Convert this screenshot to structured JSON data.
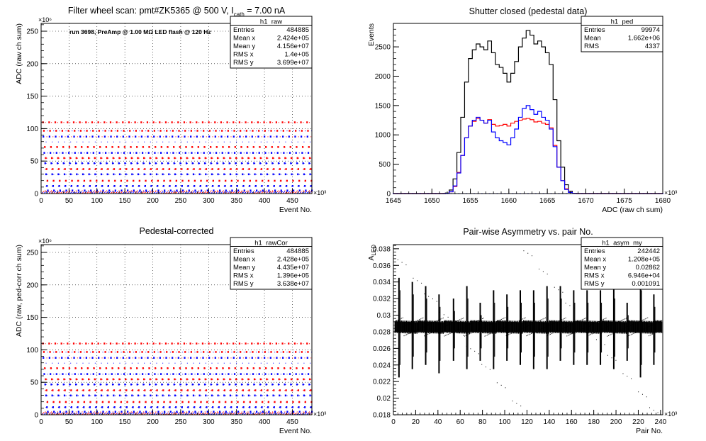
{
  "chart_data": [
    {
      "id": "raw",
      "type": "scatter",
      "title": "Filter wheel scan: pmt#ZK5365 @  500 V, I",
      "title_sub": "cath",
      "title_tail": " = 7.00 nA",
      "annotation": "run 3698, PreAmp @ 1.00 MΩ LED flash @  120 Hz",
      "xlabel": "Event No.",
      "ylabel": "ADC (raw ch sum)",
      "xlim": [
        0,
        485
      ],
      "ylim": [
        0,
        262
      ],
      "x_ticks": [
        0,
        50,
        100,
        150,
        200,
        250,
        300,
        350,
        400,
        450
      ],
      "y_ticks": [
        0,
        50,
        100,
        150,
        200,
        250
      ],
      "x_exp": "×10³",
      "y_exp": "×10⁶",
      "grid": true,
      "stats_box": {
        "name": "h1_raw",
        "rows": [
          [
            "Entries",
            "484885"
          ],
          [
            "Mean x",
            "2.424e+05"
          ],
          [
            "Mean y",
            "4.156e+07"
          ],
          [
            "RMS x",
            "1.4e+05"
          ],
          [
            "RMS y",
            "3.699e+07"
          ]
        ]
      },
      "levels": [
        5,
        12,
        20,
        30,
        38,
        47,
        55,
        63,
        72,
        80,
        88,
        97,
        110
      ],
      "step_width": 11,
      "series": [
        {
          "color": "#ff0000",
          "values": [
            110,
            97,
            72,
            55,
            38,
            20
          ]
        },
        {
          "color": "#0000ff",
          "values": [
            88,
            63,
            47,
            30,
            12,
            5
          ]
        }
      ]
    },
    {
      "id": "ped",
      "type": "line",
      "title": "Shutter closed (pedestal data)",
      "xlabel": "ADC (raw ch sum)",
      "ylabel": "Events",
      "xlim": [
        1645,
        1680
      ],
      "ylim": [
        0,
        2900
      ],
      "x_ticks": [
        1645,
        1650,
        1655,
        1660,
        1665,
        1670,
        1675,
        1680
      ],
      "y_ticks": [
        0,
        500,
        1000,
        1500,
        2000,
        2500
      ],
      "x_exp": "×10³",
      "grid": false,
      "stats_box": {
        "name": "h1_ped",
        "rows": [
          [
            "Entries",
            "99974"
          ],
          [
            "Mean",
            "1.662e+06"
          ],
          [
            "RMS",
            "4337"
          ]
        ]
      },
      "x": [
        1652,
        1652.5,
        1653,
        1653.5,
        1654,
        1654.5,
        1655,
        1655.5,
        1656,
        1656.5,
        1657,
        1657.5,
        1658,
        1658.5,
        1659,
        1659.5,
        1660,
        1660.5,
        1661,
        1661.5,
        1662,
        1662.5,
        1663,
        1663.5,
        1664,
        1664.5,
        1665,
        1665.5,
        1666,
        1666.5,
        1667,
        1667.5,
        1668,
        1668.5,
        1669,
        1669.5,
        1670,
        1670.5,
        1671
      ],
      "series": [
        {
          "color": "#000000",
          "values": [
            10,
            60,
            250,
            700,
            1300,
            1900,
            2300,
            2450,
            2550,
            2500,
            2450,
            2600,
            2400,
            2200,
            2150,
            2050,
            1900,
            2050,
            2250,
            2500,
            2650,
            2780,
            2700,
            2550,
            2600,
            2500,
            2400,
            2200,
            1600,
            900,
            450,
            150,
            40,
            5,
            0,
            0,
            0,
            0,
            0
          ]
        },
        {
          "color": "#ff0000",
          "values": [
            5,
            30,
            120,
            360,
            650,
            950,
            1150,
            1230,
            1280,
            1250,
            1200,
            1260,
            1180,
            1150,
            1160,
            1180,
            1150,
            1200,
            1230,
            1250,
            1270,
            1280,
            1260,
            1220,
            1230,
            1200,
            1180,
            1120,
            820,
            450,
            220,
            80,
            20,
            3,
            0,
            0,
            0,
            0,
            0
          ]
        },
        {
          "color": "#0000ff",
          "values": [
            5,
            30,
            130,
            350,
            650,
            950,
            1150,
            1250,
            1300,
            1250,
            1200,
            1250,
            1050,
            950,
            900,
            870,
            830,
            950,
            1100,
            1300,
            1450,
            1500,
            1430,
            1350,
            1400,
            1300,
            1250,
            1100,
            800,
            450,
            220,
            70,
            20,
            3,
            0,
            0,
            0,
            0,
            0
          ]
        }
      ]
    },
    {
      "id": "rawcor",
      "type": "scatter",
      "title": "Pedestal-corrected",
      "xlabel": "Event No.",
      "ylabel": "ADC (raw, ped-corr ch sum)",
      "xlim": [
        0,
        485
      ],
      "ylim": [
        0,
        262
      ],
      "x_ticks": [
        0,
        50,
        100,
        150,
        200,
        250,
        300,
        350,
        400,
        450
      ],
      "y_ticks": [
        0,
        50,
        100,
        150,
        200,
        250
      ],
      "x_exp": "×10³",
      "y_exp": "×10⁶",
      "grid": true,
      "stats_box": {
        "name": "h1_rawCor",
        "rows": [
          [
            "Entries",
            "484885"
          ],
          [
            "Mean x",
            "2.428e+05"
          ],
          [
            "Mean y",
            "4.435e+07"
          ],
          [
            "RMS x",
            "1.396e+05"
          ],
          [
            "RMS y",
            "3.638e+07"
          ]
        ]
      },
      "levels": [
        5,
        12,
        20,
        30,
        38,
        47,
        55,
        63,
        72,
        80,
        88,
        97,
        110
      ],
      "step_width": 11,
      "series": [
        {
          "color": "#ff0000",
          "values": [
            110,
            97,
            72,
            55,
            38,
            20
          ]
        },
        {
          "color": "#0000ff",
          "values": [
            88,
            63,
            47,
            30,
            12,
            5
          ]
        }
      ]
    },
    {
      "id": "asym",
      "type": "scatter",
      "title": "Pair-wise Asymmetry vs. pair No.",
      "xlabel": "Pair No.",
      "ylabel": "A",
      "ylabel_sub": "LED",
      "xlim": [
        0,
        242
      ],
      "ylim": [
        0.018,
        0.0385
      ],
      "x_ticks": [
        0,
        20,
        40,
        60,
        80,
        100,
        120,
        140,
        160,
        180,
        200,
        220,
        240
      ],
      "y_ticks": [
        0.018,
        0.02,
        0.022,
        0.024,
        0.026,
        0.028,
        0.03,
        0.032,
        0.034,
        0.036,
        0.038
      ],
      "x_exp": "×10³",
      "grid": false,
      "stats_box": {
        "name": "h1_asym_my",
        "rows": [
          [
            "Entries",
            "242442"
          ],
          [
            "Mean x",
            "1.208e+05"
          ],
          [
            "Mean y",
            "0.02862"
          ],
          [
            "RMS x",
            "6.946e+04"
          ],
          [
            "RMS y",
            "0.001091"
          ]
        ]
      },
      "band_center": 0.02862,
      "band_halfwidth": 0.0007,
      "spike_x": [
        5,
        17,
        29,
        41,
        54,
        66,
        78,
        90,
        102,
        114,
        126,
        138,
        150,
        162,
        174,
        186,
        198,
        210,
        222,
        234
      ],
      "spike_high": [
        0.0345,
        0.034,
        0.0335,
        0.0325,
        0.032,
        0.0335,
        0.0315,
        0.033,
        0.0325,
        0.033,
        0.033,
        0.0335,
        0.0335,
        0.033,
        0.033,
        0.033,
        0.0335,
        0.0315,
        0.0345,
        0.0325
      ],
      "spike_low": [
        0.0225,
        0.0235,
        0.024,
        0.023,
        0.0245,
        0.0235,
        0.0245,
        0.0235,
        0.0245,
        0.024,
        0.0235,
        0.0235,
        0.0245,
        0.024,
        0.024,
        0.024,
        0.0235,
        0.0245,
        0.0225,
        0.024
      ]
    }
  ]
}
